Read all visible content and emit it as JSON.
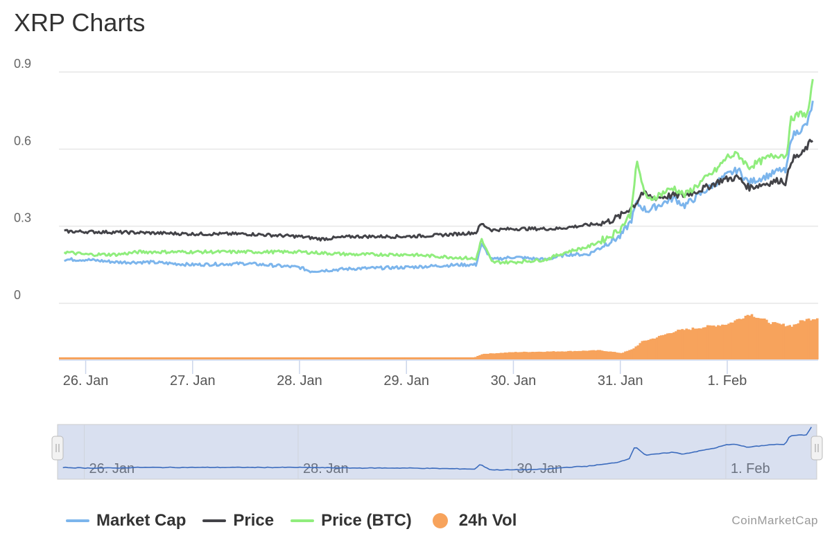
{
  "header": {
    "title": "XRP Charts"
  },
  "credits": "CoinMarketCap",
  "chart_data": {
    "type": "line",
    "title": "XRP Charts",
    "y_axis": {
      "ticks": [
        "0",
        "0.3",
        "0.6",
        "0.9"
      ],
      "ylim": [
        0,
        0.9
      ],
      "grid": true
    },
    "x_axis": {
      "ticks": [
        "26. Jan",
        "27. Jan",
        "28. Jan",
        "29. Jan",
        "30. Jan",
        "31. Jan",
        "1. Feb"
      ],
      "range_days": [
        -0.25,
        6.85
      ]
    },
    "navigator": {
      "ticks": [
        "26. Jan",
        "28. Jan",
        "30. Jan",
        "1. Feb"
      ]
    },
    "series": [
      {
        "name": "Market Cap",
        "color": "#7cb5ec",
        "points": [
          [
            -0.2,
            0.17
          ],
          [
            0.0,
            0.17
          ],
          [
            0.3,
            0.16
          ],
          [
            0.6,
            0.16
          ],
          [
            1.0,
            0.15
          ],
          [
            1.5,
            0.155
          ],
          [
            2.0,
            0.14
          ],
          [
            2.1,
            0.125
          ],
          [
            2.5,
            0.135
          ],
          [
            3.0,
            0.14
          ],
          [
            3.5,
            0.15
          ],
          [
            3.65,
            0.15
          ],
          [
            3.7,
            0.23
          ],
          [
            3.8,
            0.17
          ],
          [
            4.0,
            0.18
          ],
          [
            4.3,
            0.17
          ],
          [
            4.5,
            0.19
          ],
          [
            4.7,
            0.19
          ],
          [
            4.9,
            0.24
          ],
          [
            5.0,
            0.26
          ],
          [
            5.1,
            0.32
          ],
          [
            5.15,
            0.39
          ],
          [
            5.25,
            0.36
          ],
          [
            5.5,
            0.41
          ],
          [
            5.6,
            0.38
          ],
          [
            5.9,
            0.47
          ],
          [
            6.0,
            0.5
          ],
          [
            6.1,
            0.52
          ],
          [
            6.2,
            0.47
          ],
          [
            6.4,
            0.5
          ],
          [
            6.5,
            0.52
          ],
          [
            6.55,
            0.51
          ],
          [
            6.6,
            0.65
          ],
          [
            6.7,
            0.68
          ],
          [
            6.75,
            0.7
          ],
          [
            6.8,
            0.78
          ]
        ]
      },
      {
        "name": "Price",
        "color": "#434348",
        "points": [
          [
            -0.2,
            0.28
          ],
          [
            0.5,
            0.275
          ],
          [
            1.0,
            0.27
          ],
          [
            1.5,
            0.27
          ],
          [
            2.0,
            0.26
          ],
          [
            2.2,
            0.25
          ],
          [
            2.5,
            0.26
          ],
          [
            3.0,
            0.26
          ],
          [
            3.3,
            0.265
          ],
          [
            3.65,
            0.275
          ],
          [
            3.7,
            0.31
          ],
          [
            3.8,
            0.285
          ],
          [
            4.0,
            0.29
          ],
          [
            4.4,
            0.29
          ],
          [
            4.6,
            0.3
          ],
          [
            4.8,
            0.31
          ],
          [
            4.9,
            0.32
          ],
          [
            5.0,
            0.34
          ],
          [
            5.15,
            0.39
          ],
          [
            5.2,
            0.43
          ],
          [
            5.3,
            0.41
          ],
          [
            5.5,
            0.42
          ],
          [
            5.6,
            0.42
          ],
          [
            5.8,
            0.45
          ],
          [
            5.95,
            0.48
          ],
          [
            6.1,
            0.49
          ],
          [
            6.2,
            0.45
          ],
          [
            6.4,
            0.47
          ],
          [
            6.5,
            0.48
          ],
          [
            6.55,
            0.47
          ],
          [
            6.6,
            0.56
          ],
          [
            6.7,
            0.58
          ],
          [
            6.8,
            0.64
          ]
        ]
      },
      {
        "name": "Price (BTC)",
        "color": "#90ed7d",
        "points": [
          [
            -0.2,
            0.2
          ],
          [
            0.0,
            0.19
          ],
          [
            0.3,
            0.19
          ],
          [
            0.5,
            0.2
          ],
          [
            1.0,
            0.2
          ],
          [
            1.5,
            0.2
          ],
          [
            2.0,
            0.2
          ],
          [
            2.5,
            0.19
          ],
          [
            3.0,
            0.19
          ],
          [
            3.6,
            0.175
          ],
          [
            3.65,
            0.17
          ],
          [
            3.7,
            0.25
          ],
          [
            3.8,
            0.16
          ],
          [
            4.0,
            0.16
          ],
          [
            4.3,
            0.17
          ],
          [
            4.5,
            0.2
          ],
          [
            4.7,
            0.22
          ],
          [
            4.9,
            0.26
          ],
          [
            5.0,
            0.29
          ],
          [
            5.1,
            0.35
          ],
          [
            5.15,
            0.55
          ],
          [
            5.25,
            0.4
          ],
          [
            5.5,
            0.45
          ],
          [
            5.6,
            0.42
          ],
          [
            5.9,
            0.52
          ],
          [
            6.0,
            0.57
          ],
          [
            6.1,
            0.58
          ],
          [
            6.2,
            0.53
          ],
          [
            6.4,
            0.57
          ],
          [
            6.5,
            0.58
          ],
          [
            6.55,
            0.57
          ],
          [
            6.6,
            0.72
          ],
          [
            6.7,
            0.74
          ],
          [
            6.75,
            0.73
          ],
          [
            6.8,
            0.86
          ]
        ]
      },
      {
        "name": "24h Vol",
        "color": "#f7a35c",
        "type": "column",
        "points": [
          [
            -0.2,
            0.02
          ],
          [
            3.6,
            0.02
          ],
          [
            3.7,
            0.12
          ],
          [
            4.0,
            0.16
          ],
          [
            4.5,
            0.18
          ],
          [
            4.8,
            0.2
          ],
          [
            5.0,
            0.14
          ],
          [
            5.1,
            0.22
          ],
          [
            5.2,
            0.4
          ],
          [
            5.3,
            0.46
          ],
          [
            5.5,
            0.62
          ],
          [
            5.8,
            0.72
          ],
          [
            6.0,
            0.78
          ],
          [
            6.2,
            1.0
          ],
          [
            6.4,
            0.8
          ],
          [
            6.5,
            0.76
          ],
          [
            6.6,
            0.74
          ],
          [
            6.7,
            0.86
          ],
          [
            6.85,
            0.92
          ]
        ]
      }
    ]
  },
  "legend": [
    {
      "label": "Market Cap",
      "color": "#7cb5ec",
      "symbol": "line"
    },
    {
      "label": "Price",
      "color": "#434348",
      "symbol": "line"
    },
    {
      "label": "Price (BTC)",
      "color": "#90ed7d",
      "symbol": "line"
    },
    {
      "label": "24h Vol",
      "color": "#f7a35c",
      "symbol": "circle"
    }
  ]
}
